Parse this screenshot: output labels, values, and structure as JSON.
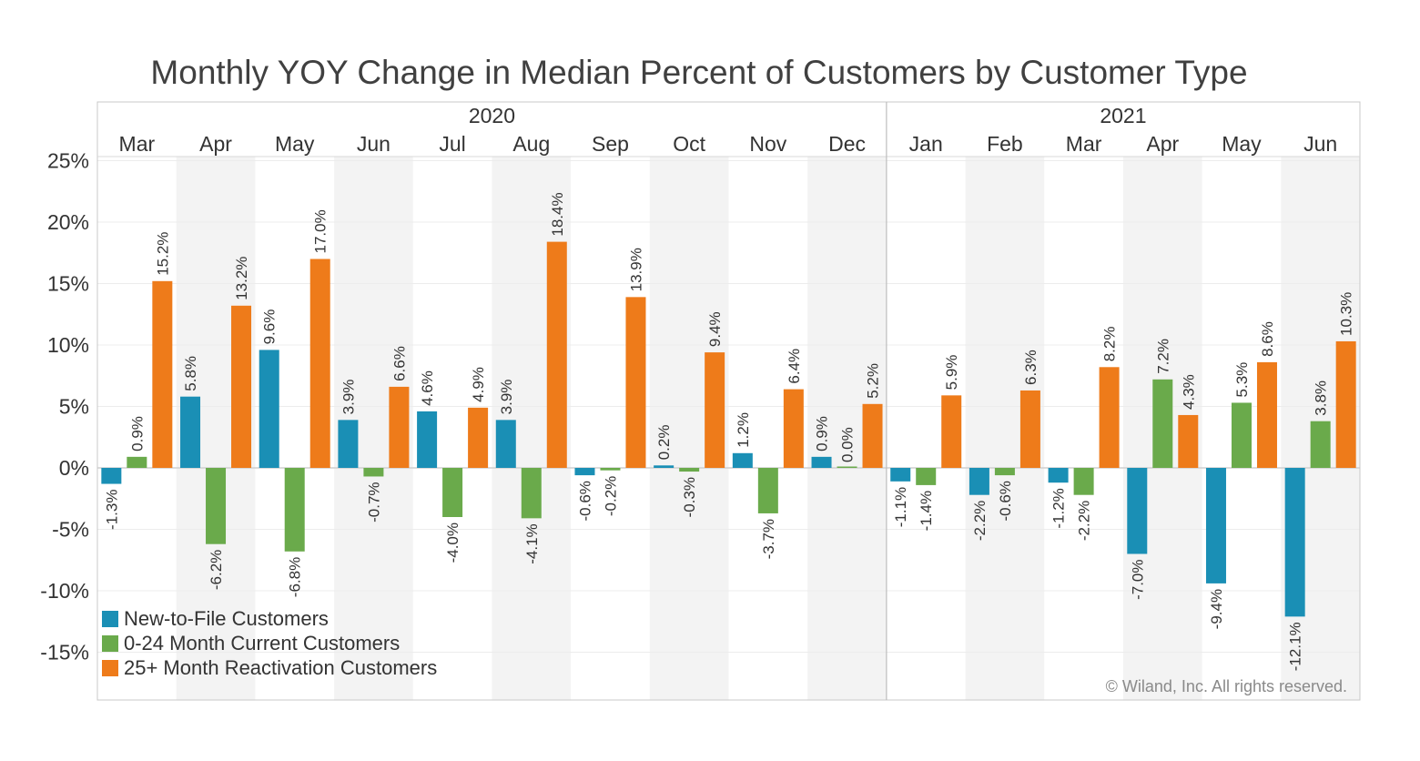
{
  "chart_data": {
    "type": "bar",
    "title": "Monthly YOY Change in Median Percent of Customers by Customer Type",
    "years": [
      {
        "label": "2020",
        "months": [
          "Mar",
          "Apr",
          "May",
          "Jun",
          "Jul",
          "Aug",
          "Sep",
          "Oct",
          "Nov",
          "Dec"
        ]
      },
      {
        "label": "2021",
        "months": [
          "Jan",
          "Feb",
          "Mar",
          "Apr",
          "May",
          "Jun"
        ]
      }
    ],
    "categories": [
      "Mar",
      "Apr",
      "May",
      "Jun",
      "Jul",
      "Aug",
      "Sep",
      "Oct",
      "Nov",
      "Dec",
      "Jan",
      "Feb",
      "Mar",
      "Apr",
      "May",
      "Jun"
    ],
    "series": [
      {
        "name": "New-to-File Customers",
        "color": "#1a8fb5",
        "values": [
          -1.3,
          5.8,
          9.6,
          3.9,
          4.6,
          3.9,
          -0.6,
          0.2,
          1.2,
          0.9,
          -1.1,
          -2.2,
          -1.2,
          -7.0,
          -9.4,
          -12.1
        ],
        "labels": [
          "-1.3%",
          "5.8%",
          "9.6%",
          "3.9%",
          "4.6%",
          "3.9%",
          "-0.6%",
          "0.2%",
          "1.2%",
          "0.9%",
          "-1.1%",
          "-2.2%",
          "-1.2%",
          "-7.0%",
          "-9.4%",
          "-12.1%"
        ]
      },
      {
        "name": "0-24 Month Current Customers",
        "color": "#6aaa4b",
        "values": [
          0.9,
          -6.2,
          -6.8,
          -0.7,
          -4.0,
          -4.1,
          -0.2,
          -0.3,
          -3.7,
          0.0,
          -1.4,
          -0.6,
          -2.2,
          7.2,
          5.3,
          3.8
        ],
        "labels": [
          "0.9%",
          "-6.2%",
          "-6.8%",
          "-0.7%",
          "-4.0%",
          "-4.1%",
          "-0.2%",
          "-0.3%",
          "-3.7%",
          "0.0%",
          "-1.4%",
          "-0.6%",
          "-2.2%",
          "7.2%",
          "5.3%",
          "3.8%"
        ]
      },
      {
        "name": "25+ Month Reactivation Customers",
        "color": "#ee7b1a",
        "values": [
          15.2,
          13.2,
          17.0,
          6.6,
          4.9,
          18.4,
          13.9,
          9.4,
          6.4,
          5.2,
          5.9,
          6.3,
          8.2,
          4.3,
          8.6,
          10.3
        ],
        "labels": [
          "15.2%",
          "13.2%",
          "17.0%",
          "6.6%",
          "4.9%",
          "18.4%",
          "13.9%",
          "9.4%",
          "6.4%",
          "5.2%",
          "5.9%",
          "6.3%",
          "8.2%",
          "4.3%",
          "8.6%",
          "10.3%"
        ]
      }
    ],
    "yticks": [
      25,
      20,
      15,
      10,
      5,
      0,
      -5,
      -10,
      -15
    ],
    "ytick_labels": [
      "25%",
      "20%",
      "15%",
      "10%",
      "5%",
      "0%",
      "-5%",
      "-10%",
      "-15%"
    ],
    "ylim": [
      -18,
      25
    ],
    "grid": true,
    "legend_position": "bottom-left",
    "copyright": "© Wiland, Inc. All rights reserved."
  }
}
